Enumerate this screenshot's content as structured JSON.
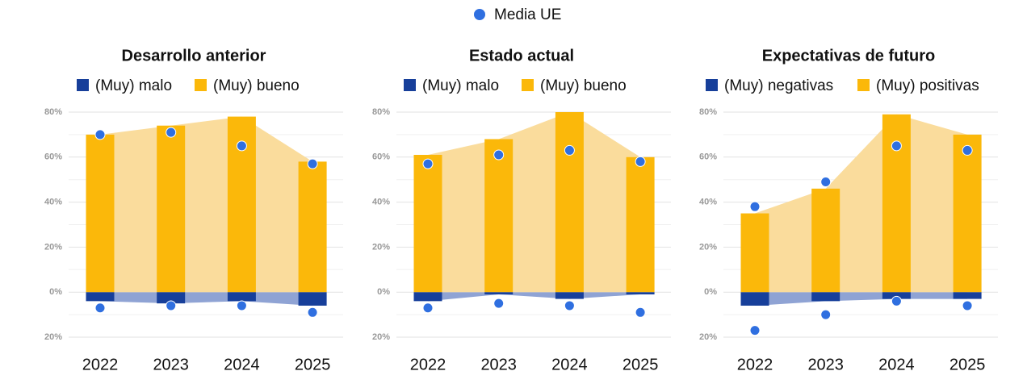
{
  "legend": {
    "name": "Media UE",
    "color": "#2f6fe0"
  },
  "chart_data": [
    {
      "type": "bar",
      "title": "Desarrollo anterior",
      "categories": [
        "2022",
        "2023",
        "2024",
        "2025"
      ],
      "series": [
        {
          "name": "(Muy) malo",
          "color": "#173f9a",
          "area_color": "#8fa3d4",
          "values": [
            -4,
            -5,
            -4,
            -6
          ],
          "eu_values": [
            -7,
            -6,
            -6,
            -9
          ]
        },
        {
          "name": "(Muy) bueno",
          "color": "#fbb80a",
          "area_color": "#fadc9c",
          "values": [
            70,
            74,
            78,
            58
          ],
          "eu_values": [
            70,
            71,
            65,
            57
          ]
        }
      ],
      "ylim": [
        -20,
        80
      ],
      "yticks": [
        {
          "value": -20,
          "label": "20%"
        },
        {
          "value": 0,
          "label": "0%"
        },
        {
          "value": 20,
          "label": "20%"
        },
        {
          "value": 40,
          "label": "40%"
        },
        {
          "value": 60,
          "label": "60%"
        },
        {
          "value": 80,
          "label": "80%"
        }
      ],
      "yminor": [
        -10,
        10,
        30,
        50,
        70
      ],
      "grid": true
    },
    {
      "type": "bar",
      "title": "Estado actual",
      "categories": [
        "2022",
        "2023",
        "2024",
        "2025"
      ],
      "series": [
        {
          "name": "(Muy) malo",
          "color": "#173f9a",
          "area_color": "#8fa3d4",
          "values": [
            -4,
            -1,
            -3,
            -1
          ],
          "eu_values": [
            -7,
            -5,
            -6,
            -9
          ]
        },
        {
          "name": "(Muy) bueno",
          "color": "#fbb80a",
          "area_color": "#fadc9c",
          "values": [
            61,
            68,
            80,
            60
          ],
          "eu_values": [
            57,
            61,
            63,
            58
          ]
        }
      ],
      "ylim": [
        -20,
        80
      ],
      "yticks": [
        {
          "value": -20,
          "label": "20%"
        },
        {
          "value": 0,
          "label": "0%"
        },
        {
          "value": 20,
          "label": "20%"
        },
        {
          "value": 40,
          "label": "40%"
        },
        {
          "value": 60,
          "label": "60%"
        },
        {
          "value": 80,
          "label": "80%"
        }
      ],
      "yminor": [
        -10,
        10,
        30,
        50,
        70
      ],
      "grid": true
    },
    {
      "type": "bar",
      "title": "Expectativas de futuro",
      "categories": [
        "2022",
        "2023",
        "2024",
        "2025"
      ],
      "series": [
        {
          "name": "(Muy) negativas",
          "color": "#173f9a",
          "area_color": "#8fa3d4",
          "values": [
            -6,
            -4,
            -3,
            -3
          ],
          "eu_values": [
            -17,
            -10,
            -4,
            -6
          ]
        },
        {
          "name": "(Muy) positivas",
          "color": "#fbb80a",
          "area_color": "#fadc9c",
          "values": [
            35,
            46,
            79,
            70
          ],
          "eu_values": [
            38,
            49,
            65,
            63
          ]
        }
      ],
      "ylim": [
        -20,
        80
      ],
      "yticks": [
        {
          "value": -20,
          "label": "20%"
        },
        {
          "value": 0,
          "label": "0%"
        },
        {
          "value": 20,
          "label": "20%"
        },
        {
          "value": 40,
          "label": "40%"
        },
        {
          "value": 60,
          "label": "60%"
        },
        {
          "value": 80,
          "label": "80%"
        }
      ],
      "yminor": [
        -10,
        10,
        30,
        50,
        70
      ],
      "grid": true
    }
  ]
}
